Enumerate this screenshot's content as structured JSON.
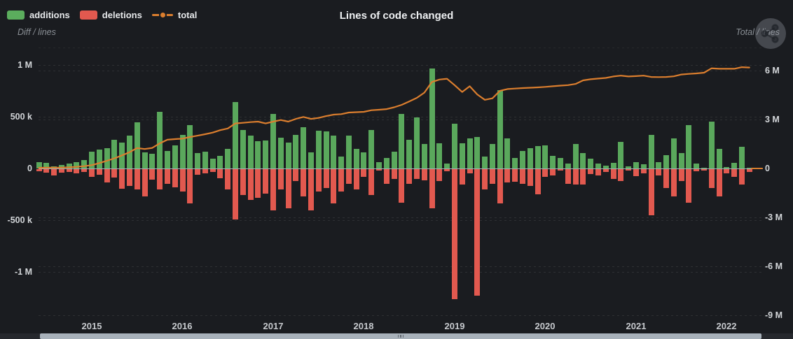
{
  "header": {
    "title": "Lines of code changed",
    "legend": [
      {
        "id": "additions",
        "label": "additions",
        "swatch_color": "#5bad5d"
      },
      {
        "id": "deletions",
        "label": "deletions",
        "swatch_color": "#e2594f"
      },
      {
        "id": "total",
        "label": "total",
        "swatch_color": "#db7e2e"
      }
    ],
    "left_axis_caption": "Diff / lines",
    "right_axis_caption": "Total / lines",
    "menu_icon": "share-icon"
  },
  "colors": {
    "background": "#1a1c20",
    "additions": "#5aa85c",
    "deletions": "#e2594f",
    "total_line": "#db7e2e",
    "zero_line": "#a7adb3",
    "tick_text": "#d3d6d9",
    "caption_text": "#8b9096",
    "scrollbar_thumb": "#a8b1ba"
  },
  "axes": {
    "left": {
      "caption": "Diff / lines",
      "ticks": [
        {
          "label": "1 M",
          "value_k": 1000
        },
        {
          "label": "500 k",
          "value_k": 500
        },
        {
          "label": "0",
          "value_k": 0
        },
        {
          "label": "-500 k",
          "value_k": -500
        },
        {
          "label": "-1 M",
          "value_k": -1000
        }
      ]
    },
    "right": {
      "caption": "Total / lines",
      "ticks": [
        {
          "label": "6 M",
          "value_m": 6
        },
        {
          "label": "3 M",
          "value_m": 3
        },
        {
          "label": "0",
          "value_m": 0
        },
        {
          "label": "-3 M",
          "value_m": -3
        },
        {
          "label": "-6 M",
          "value_m": -6
        },
        {
          "label": "-9 M",
          "value_m": -9
        }
      ]
    },
    "x": {
      "ticks": [
        "2015",
        "2016",
        "2017",
        "2018",
        "2019",
        "2020",
        "2021",
        "2022"
      ]
    }
  },
  "chart_data": {
    "type": "bar",
    "subtype": "bar+line dual-axis",
    "title": "Lines of code changed",
    "legend_position": "top-left",
    "grid": "dashed horizontal",
    "left_axis": {
      "label": "Diff / lines",
      "unit": "lines",
      "range_k": [
        -1300,
        1100
      ]
    },
    "right_axis": {
      "label": "Total / lines",
      "unit": "lines",
      "range_m": [
        -9,
        6.6
      ]
    },
    "x": [
      "2014-06",
      "2014-07",
      "2014-08",
      "2014-09",
      "2014-10",
      "2014-11",
      "2014-12",
      "2015-01",
      "2015-02",
      "2015-03",
      "2015-04",
      "2015-05",
      "2015-06",
      "2015-07",
      "2015-08",
      "2015-09",
      "2015-10",
      "2015-11",
      "2015-12",
      "2016-01",
      "2016-02",
      "2016-03",
      "2016-04",
      "2016-05",
      "2016-06",
      "2016-07",
      "2016-08",
      "2016-09",
      "2016-10",
      "2016-11",
      "2016-12",
      "2017-01",
      "2017-02",
      "2017-03",
      "2017-04",
      "2017-05",
      "2017-06",
      "2017-07",
      "2017-08",
      "2017-09",
      "2017-10",
      "2017-11",
      "2017-12",
      "2018-01",
      "2018-02",
      "2018-03",
      "2018-04",
      "2018-05",
      "2018-06",
      "2018-07",
      "2018-08",
      "2018-09",
      "2018-10",
      "2018-11",
      "2018-12",
      "2019-01",
      "2019-02",
      "2019-03",
      "2019-04",
      "2019-05",
      "2019-06",
      "2019-07",
      "2019-08",
      "2019-09",
      "2019-10",
      "2019-11",
      "2019-12",
      "2020-01",
      "2020-02",
      "2020-03",
      "2020-04",
      "2020-05",
      "2020-06",
      "2020-07",
      "2020-08",
      "2020-09",
      "2020-10",
      "2020-11",
      "2020-12",
      "2021-01",
      "2021-02",
      "2021-03",
      "2021-04",
      "2021-05",
      "2021-06",
      "2021-07",
      "2021-08",
      "2021-09",
      "2021-10",
      "2021-11",
      "2021-12",
      "2022-01",
      "2022-02",
      "2022-03",
      "2022-04"
    ],
    "series": [
      {
        "name": "additions",
        "type": "bar",
        "axis": "left",
        "unit": "thousand lines",
        "values_k": [
          60,
          52,
          18,
          34,
          50,
          59,
          83,
          164,
          180,
          198,
          277,
          248,
          320,
          443,
          153,
          142,
          547,
          169,
          225,
          322,
          416,
          146,
          164,
          92,
          120,
          187,
          644,
          372,
          315,
          266,
          270,
          529,
          300,
          248,
          322,
          401,
          153,
          367,
          360,
          315,
          113,
          315,
          191,
          158,
          372,
          63,
          104,
          164,
          530,
          277,
          491,
          236,
          968,
          243,
          45,
          435,
          243,
          288,
          304,
          113,
          236,
          754,
          293,
          101,
          169,
          198,
          214,
          221,
          119,
          104,
          45,
          236,
          146,
          97,
          45,
          29,
          56,
          254,
          18,
          63,
          41,
          322,
          63,
          131,
          288,
          146,
          417,
          47,
          7,
          450,
          191,
          11,
          57,
          210,
          7
        ]
      },
      {
        "name": "deletions",
        "type": "bar",
        "axis": "left",
        "unit": "thousand lines",
        "values_k": [
          -22,
          -31,
          -63,
          -34,
          -27,
          -40,
          -25,
          -72,
          -54,
          -128,
          -83,
          -189,
          -160,
          -196,
          -263,
          -99,
          -196,
          -144,
          -173,
          -218,
          -331,
          -54,
          -38,
          -25,
          -90,
          -196,
          -489,
          -248,
          -297,
          -275,
          -236,
          -399,
          -196,
          -376,
          -117,
          -263,
          -399,
          -218,
          -185,
          -331,
          -218,
          -140,
          -196,
          -72,
          -252,
          -16,
          -140,
          -95,
          -325,
          -140,
          -95,
          -106,
          -376,
          -117,
          -20,
          -1254,
          -151,
          -38,
          -1221,
          -196,
          -140,
          -331,
          -128,
          -124,
          -140,
          -162,
          -241,
          -72,
          -61,
          -16,
          -140,
          -151,
          -146,
          -50,
          -61,
          -27,
          -95,
          -113,
          -16,
          -68,
          -38,
          -444,
          -61,
          -185,
          -263,
          -117,
          -327,
          -20,
          -11,
          -185,
          -263,
          -40,
          -73,
          -150,
          -27
        ]
      },
      {
        "name": "total",
        "type": "line",
        "axis": "right",
        "unit": "million lines",
        "values_m": [
          0.04,
          0.05,
          0.05,
          0.05,
          0.07,
          0.1,
          0.14,
          0.2,
          0.33,
          0.47,
          0.62,
          0.8,
          1.0,
          1.25,
          1.19,
          1.26,
          1.54,
          1.76,
          1.8,
          1.83,
          1.93,
          2.01,
          2.1,
          2.2,
          2.35,
          2.45,
          2.76,
          2.8,
          2.84,
          2.87,
          2.76,
          2.87,
          2.97,
          2.87,
          3.04,
          3.16,
          3.04,
          3.1,
          3.21,
          3.3,
          3.33,
          3.43,
          3.45,
          3.47,
          3.57,
          3.6,
          3.64,
          3.75,
          3.9,
          4.11,
          4.33,
          4.65,
          5.3,
          5.45,
          5.5,
          5.11,
          4.69,
          5.04,
          4.54,
          4.21,
          4.3,
          4.76,
          4.87,
          4.9,
          4.93,
          4.95,
          4.97,
          5.0,
          5.04,
          5.08,
          5.11,
          5.18,
          5.4,
          5.47,
          5.51,
          5.55,
          5.64,
          5.69,
          5.64,
          5.66,
          5.69,
          5.61,
          5.6,
          5.61,
          5.65,
          5.76,
          5.8,
          5.83,
          5.87,
          6.14,
          6.11,
          6.11,
          6.11,
          6.21,
          6.19
        ]
      }
    ]
  },
  "scrollbar": {
    "kind": "data-zoom-slider",
    "range": "full"
  }
}
